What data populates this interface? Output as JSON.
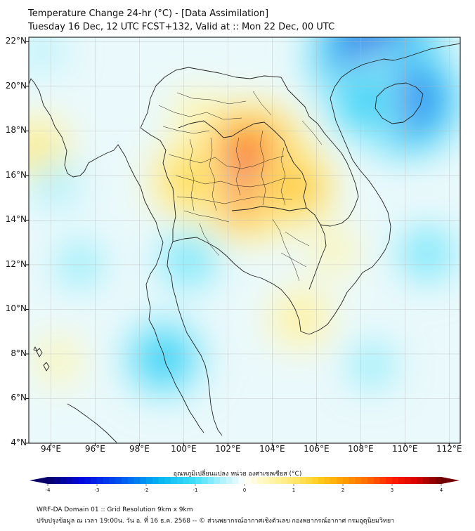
{
  "header": {
    "title_line1": "Temperature Change 24-hr (°C) - [Data Assimilation]",
    "title_line2": "Tuesday 16 Dec, 12 UTC FCST+132, Valid at :: Mon 22 Dec, 00 UTC"
  },
  "map": {
    "extent": {
      "lon_min": 93,
      "lon_max": 112.5,
      "lat_min": 4,
      "lat_max": 22.2
    },
    "lat_ticks": [
      22,
      20,
      18,
      16,
      14,
      12,
      10,
      8,
      6,
      4
    ],
    "lat_labels": [
      "22°N",
      "20°N",
      "18°N",
      "16°N",
      "14°N",
      "12°N",
      "10°N",
      "8°N",
      "6°N",
      "4°N"
    ],
    "lon_ticks": [
      94,
      96,
      98,
      100,
      102,
      104,
      106,
      108,
      110,
      112
    ],
    "lon_labels": [
      "94°E",
      "96°E",
      "98°E",
      "100°E",
      "102°E",
      "104°E",
      "106°E",
      "108°E",
      "110°E",
      "112°E"
    ],
    "anomalies": [
      {
        "name": "warm-core-northeast-thailand",
        "lon": 102.9,
        "lat": 16.2,
        "value": 3.2
      },
      {
        "name": "warm-laos-east",
        "lon": 105.0,
        "lat": 15.5,
        "value": 1.6
      },
      {
        "name": "warm-central-thailand",
        "lon": 100.3,
        "lat": 15.8,
        "value": 1.3
      },
      {
        "name": "warm-north",
        "lon": 100.5,
        "lat": 18.8,
        "value": 0.5
      },
      {
        "name": "warm-myanmar-coast",
        "lon": 93.4,
        "lat": 17.2,
        "value": 0.9
      },
      {
        "name": "warm-vietnam-south",
        "lon": 106.8,
        "lat": 12.6,
        "value": 0.5
      },
      {
        "name": "warm-cambodia-south",
        "lon": 105.3,
        "lat": 9.6,
        "value": 0.7
      },
      {
        "name": "warm-andaman-south",
        "lon": 94.3,
        "lat": 7.7,
        "value": 0.5
      },
      {
        "name": "cold-south-china-sea-north",
        "lon": 108.8,
        "lat": 21.3,
        "value": -3.4
      },
      {
        "name": "cold-hainan",
        "lon": 110.0,
        "lat": 19.4,
        "value": -2.6
      },
      {
        "name": "cold-gulf-of-tonkin",
        "lon": 108.2,
        "lat": 19.3,
        "value": -1.3
      },
      {
        "name": "cold-peninsula",
        "lon": 99.1,
        "lat": 7.8,
        "value": -1.3
      },
      {
        "name": "cold-gulf-of-thailand",
        "lon": 100.2,
        "lat": 12.2,
        "value": -0.8
      },
      {
        "name": "cold-andaman",
        "lon": 95.3,
        "lat": 12.0,
        "value": -0.6
      },
      {
        "name": "cold-east-sea",
        "lon": 111.0,
        "lat": 12.5,
        "value": -0.8
      },
      {
        "name": "cold-south-sea",
        "lon": 108.5,
        "lat": 7.5,
        "value": -0.6
      },
      {
        "name": "cold-myanmar-west",
        "lon": 94.2,
        "lat": 15.6,
        "value": -0.5
      },
      {
        "name": "cold-northwest",
        "lon": 93.6,
        "lat": 21.6,
        "value": -0.4
      }
    ]
  },
  "colorbar": {
    "title": "อุณหภูมิเปลี่ยนแปลง หน่วย องศาเซลเซียส (°C)",
    "min": -4,
    "max": 4,
    "tick_values": [
      -4,
      -3,
      -2,
      -1,
      0,
      1,
      2,
      3,
      4
    ],
    "tick_labels": [
      "-4",
      "-3",
      "-2",
      "-1",
      "0",
      "1",
      "2",
      "3",
      "4"
    ],
    "stops": [
      {
        "v": -4,
        "c": "#080068"
      },
      {
        "v": -3.3,
        "c": "#0008e0"
      },
      {
        "v": -2.5,
        "c": "#0058f0"
      },
      {
        "v": -1.8,
        "c": "#00b0f0"
      },
      {
        "v": -1.0,
        "c": "#40e0f8"
      },
      {
        "v": -0.5,
        "c": "#a8f0fc"
      },
      {
        "v": 0,
        "c": "#fefefe"
      },
      {
        "v": 0.5,
        "c": "#fff6b0"
      },
      {
        "v": 1.0,
        "c": "#ffe870"
      },
      {
        "v": 1.5,
        "c": "#ffcc20"
      },
      {
        "v": 2.0,
        "c": "#ffa000"
      },
      {
        "v": 2.5,
        "c": "#ff6a00"
      },
      {
        "v": 3.0,
        "c": "#ff2000"
      },
      {
        "v": 3.5,
        "c": "#d80000"
      },
      {
        "v": 4.0,
        "c": "#700000"
      }
    ]
  },
  "footer": {
    "line1": "WRF-DA Domain 01 :: Grid Resolution 9km x 9km",
    "line2": "ปรับปรุงข้อมูล ณ เวลา 19:00น. วัน อ. ที่ 16 ธ.ค. 2568 -- © ส่วนพยากรณ์อากาศเชิงตัวเลข กองพยากรณ์อากาศ กรมอุตุนิยมวิทยา"
  }
}
